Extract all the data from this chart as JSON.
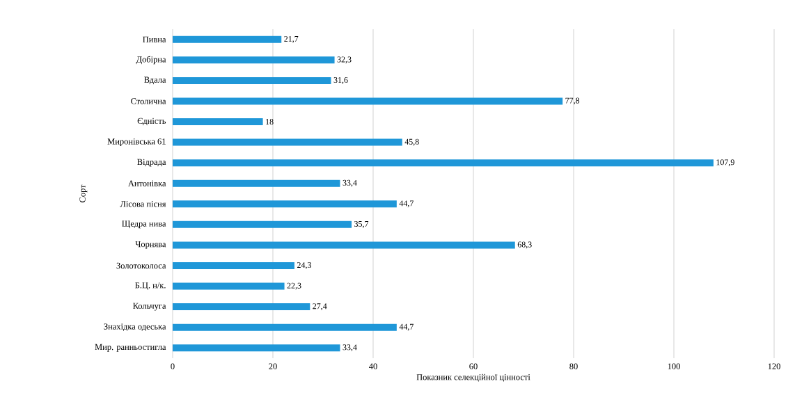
{
  "chart_data": {
    "type": "bar",
    "orientation": "horizontal",
    "xlabel": "Показник селекційної цінності",
    "ylabel": "Сорт",
    "categories": [
      "Пивна",
      "Добірна",
      "Вдала",
      "Столична",
      "Єдність",
      "Миронівська 61",
      "Відрада",
      "Антонівка",
      "Лісова пісня",
      "Щедра нива",
      "Чорнява",
      "Золотоколоса",
      "Б.Ц. н/к.",
      "Кольчуга",
      "Знахідка одеська",
      "Мир. ранньостигла"
    ],
    "values": [
      21.7,
      32.3,
      31.6,
      77.8,
      18,
      45.8,
      107.9,
      33.4,
      44.7,
      35.7,
      68.3,
      24.3,
      22.3,
      27.4,
      44.7,
      33.4
    ],
    "value_labels": [
      "21,7",
      "32,3",
      "31,6",
      "77,8",
      "18",
      "45,8",
      "107,9",
      "33,4",
      "44,7",
      "35,7",
      "68,3",
      "24,3",
      "22,3",
      "27,4",
      "44,7",
      "33,4"
    ],
    "color": "#1f97d8",
    "xlim": [
      0,
      120
    ],
    "xticks": [
      0,
      20,
      40,
      60,
      80,
      100,
      120
    ],
    "grid": "x"
  }
}
